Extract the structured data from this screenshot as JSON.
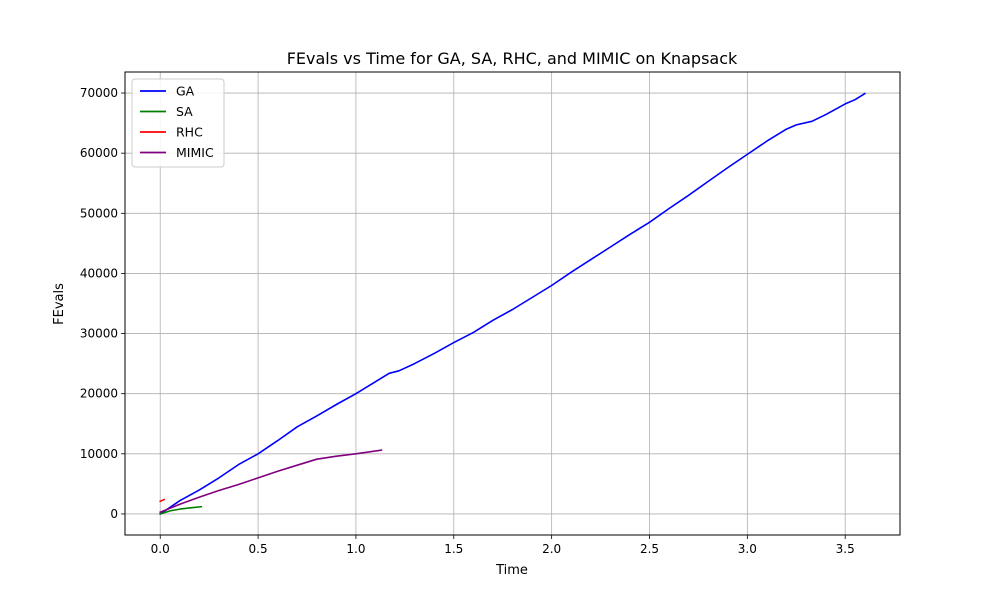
{
  "chart_data": {
    "type": "line",
    "title": "FEvals vs Time for GA, SA, RHC, and MIMIC on Knapsack",
    "xlabel": "Time",
    "ylabel": "FEvals",
    "xlim": [
      -0.18,
      3.78
    ],
    "ylim": [
      -3500,
      73500
    ],
    "xticks": [
      0.0,
      0.5,
      1.0,
      1.5,
      2.0,
      2.5,
      3.0,
      3.5
    ],
    "xtick_labels": [
      "0.0",
      "0.5",
      "1.0",
      "1.5",
      "2.0",
      "2.5",
      "3.0",
      "3.5"
    ],
    "yticks": [
      0,
      10000,
      20000,
      30000,
      40000,
      50000,
      60000,
      70000
    ],
    "ytick_labels": [
      "0",
      "10000",
      "20000",
      "30000",
      "40000",
      "50000",
      "60000",
      "70000"
    ],
    "grid": true,
    "legend_position": "top-left",
    "series": [
      {
        "name": "GA",
        "color": "#0000ff",
        "points": [
          [
            0.0,
            0
          ],
          [
            0.1,
            2200
          ],
          [
            0.2,
            4000
          ],
          [
            0.3,
            6000
          ],
          [
            0.4,
            8200
          ],
          [
            0.5,
            10000
          ],
          [
            0.6,
            12200
          ],
          [
            0.7,
            14500
          ],
          [
            0.8,
            16300
          ],
          [
            0.9,
            18200
          ],
          [
            1.0,
            20000
          ],
          [
            1.1,
            22000
          ],
          [
            1.17,
            23400
          ],
          [
            1.22,
            23800
          ],
          [
            1.3,
            25000
          ],
          [
            1.4,
            26700
          ],
          [
            1.5,
            28500
          ],
          [
            1.6,
            30200
          ],
          [
            1.7,
            32200
          ],
          [
            1.8,
            34000
          ],
          [
            1.9,
            36000
          ],
          [
            2.0,
            38000
          ],
          [
            2.1,
            40200
          ],
          [
            2.2,
            42300
          ],
          [
            2.3,
            44400
          ],
          [
            2.4,
            46500
          ],
          [
            2.5,
            48500
          ],
          [
            2.6,
            50800
          ],
          [
            2.7,
            53000
          ],
          [
            2.8,
            55300
          ],
          [
            2.9,
            57600
          ],
          [
            3.0,
            59800
          ],
          [
            3.1,
            62000
          ],
          [
            3.2,
            64000
          ],
          [
            3.25,
            64700
          ],
          [
            3.33,
            65300
          ],
          [
            3.4,
            66400
          ],
          [
            3.5,
            68200
          ],
          [
            3.55,
            68900
          ],
          [
            3.6,
            69900
          ]
        ]
      },
      {
        "name": "SA",
        "color": "#008000",
        "points": [
          [
            0.0,
            0
          ],
          [
            0.05,
            500
          ],
          [
            0.1,
            800
          ],
          [
            0.15,
            1000
          ],
          [
            0.21,
            1200
          ]
        ]
      },
      {
        "name": "RHC",
        "color": "#ff0000",
        "points": [
          [
            0.0,
            2100
          ],
          [
            0.02,
            2400
          ]
        ]
      },
      {
        "name": "MIMIC",
        "color": "#800080",
        "points": [
          [
            0.0,
            300
          ],
          [
            0.1,
            1600
          ],
          [
            0.2,
            2800
          ],
          [
            0.3,
            3900
          ],
          [
            0.4,
            4900
          ],
          [
            0.5,
            6000
          ],
          [
            0.6,
            7100
          ],
          [
            0.7,
            8100
          ],
          [
            0.8,
            9100
          ],
          [
            0.9,
            9600
          ],
          [
            1.0,
            10000
          ],
          [
            1.13,
            10600
          ]
        ]
      }
    ]
  }
}
